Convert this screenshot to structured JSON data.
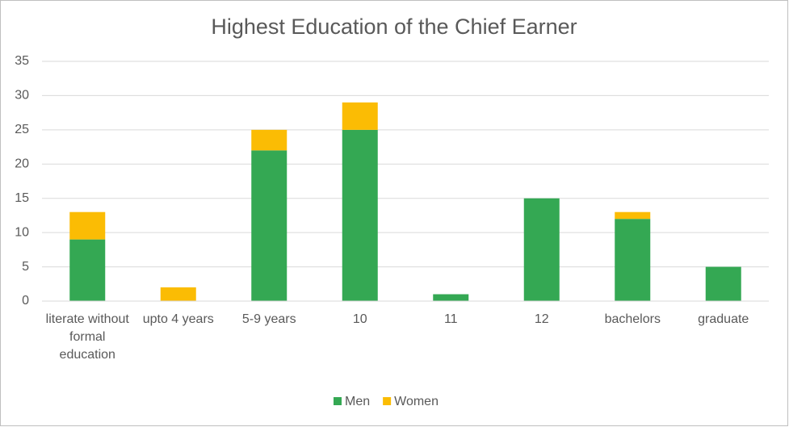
{
  "chart_data": {
    "type": "bar",
    "stacked": true,
    "title": "Highest Education of the Chief Earner",
    "categories": [
      "literate without formal education",
      "upto 4 years",
      "5-9 years",
      "10",
      "11",
      "12",
      "bachelors",
      "graduate"
    ],
    "series": [
      {
        "name": "Men",
        "color": "#34a853",
        "values": [
          9,
          0,
          22,
          25,
          1,
          15,
          12,
          5
        ]
      },
      {
        "name": "Women",
        "color": "#fbbc04",
        "values": [
          4,
          2,
          3,
          4,
          0,
          0,
          1,
          0
        ]
      }
    ],
    "ylim": [
      0,
      35
    ],
    "yticks": [
      0,
      5,
      10,
      15,
      20,
      25,
      30,
      35
    ],
    "grid": true,
    "legend": "bottom"
  }
}
